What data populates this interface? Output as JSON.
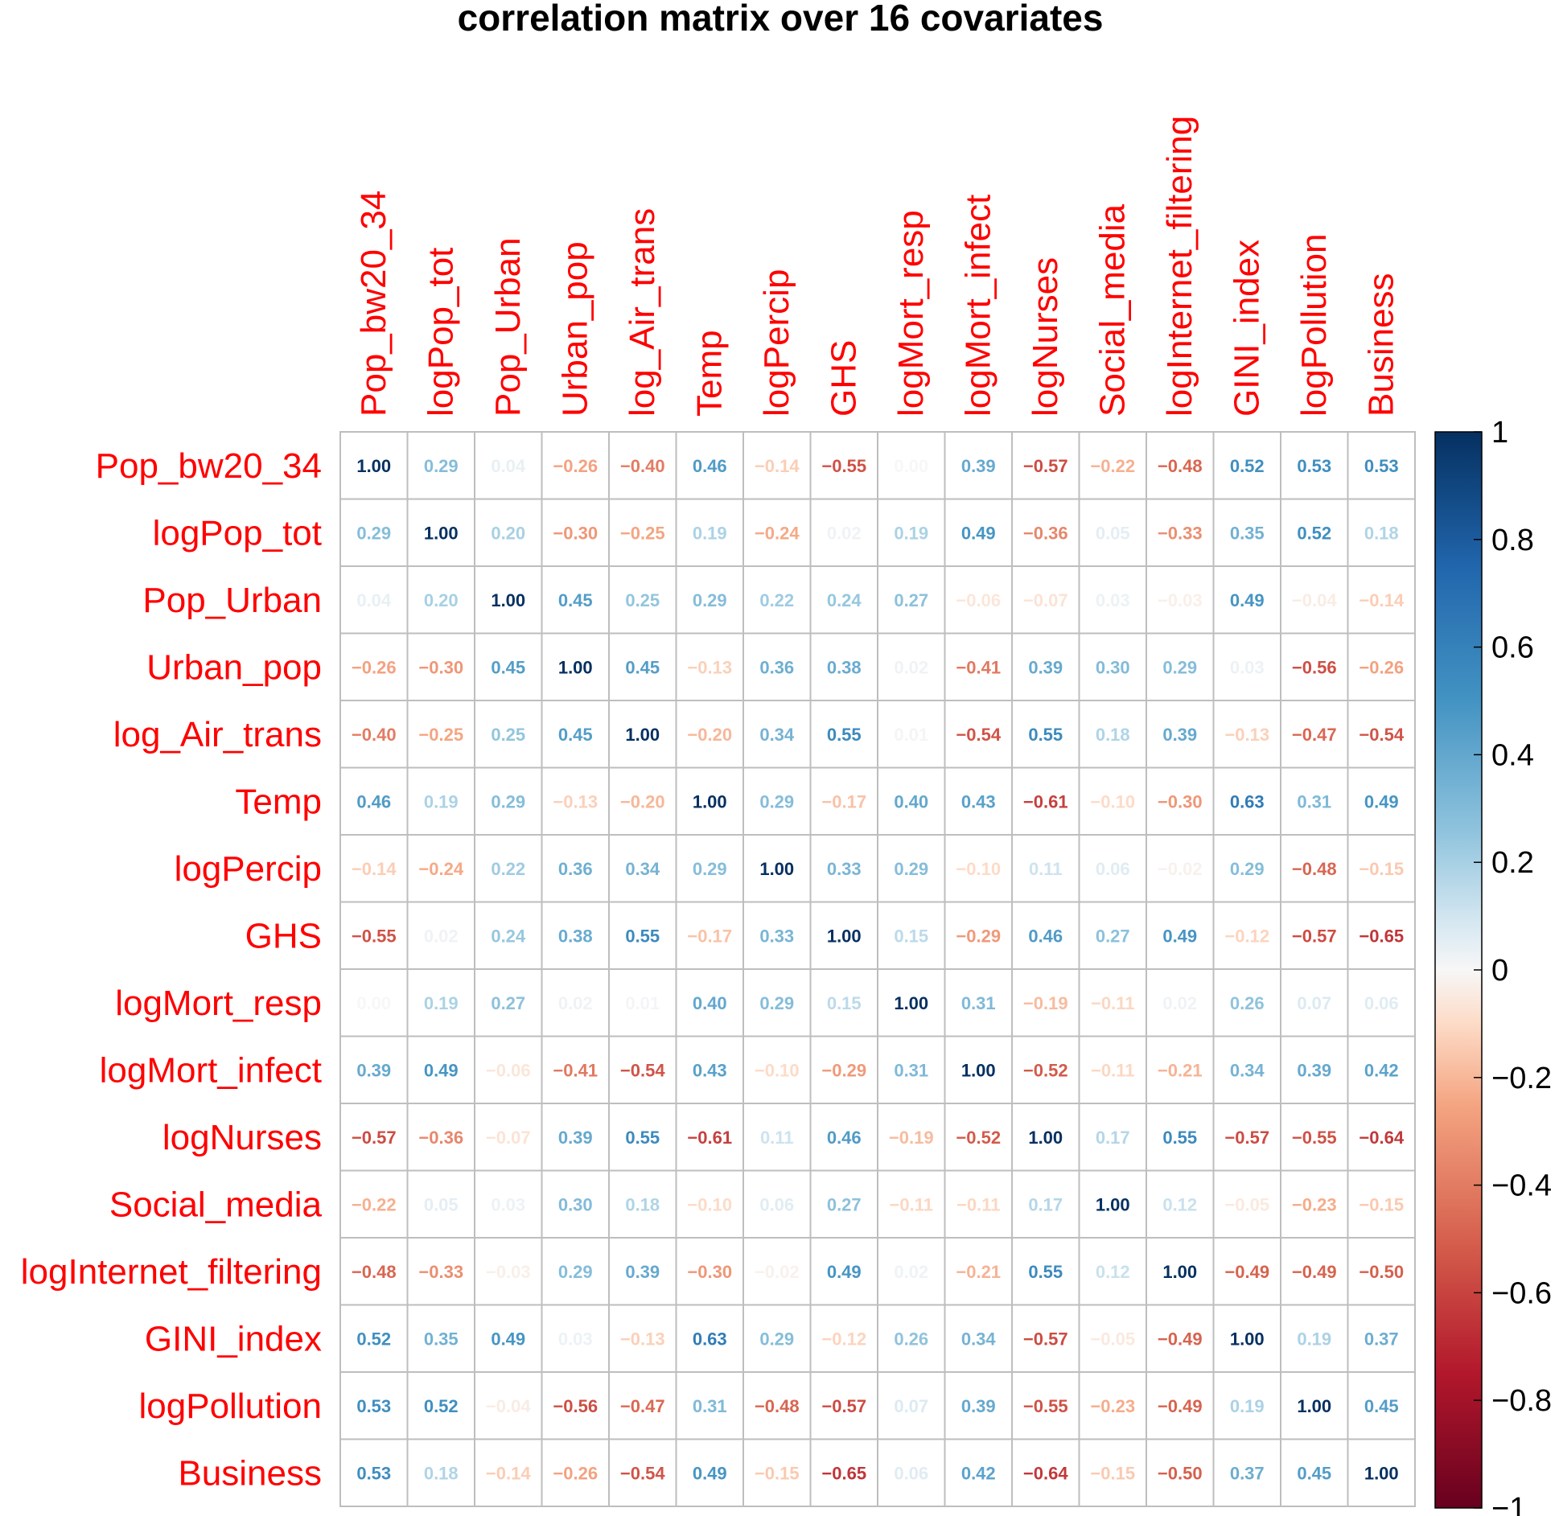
{
  "chart_data": {
    "type": "heatmap",
    "title": "correlation matrix over 16 covariates",
    "variables": [
      "Pop_bw20_34",
      "logPop_tot",
      "Pop_Urban",
      "Urban_pop",
      "log_Air_trans",
      "Temp",
      "logPercip",
      "GHS",
      "logMort_resp",
      "logMort_infect",
      "logNurses",
      "Social_media",
      "logInternet_filtering",
      "GINI_index",
      "logPollution",
      "Business"
    ],
    "matrix": [
      [
        1.0,
        0.29,
        0.04,
        -0.26,
        -0.4,
        0.46,
        -0.14,
        -0.55,
        0.0,
        0.39,
        -0.57,
        -0.22,
        -0.48,
        0.52,
        0.53,
        0.53
      ],
      [
        0.29,
        1.0,
        0.2,
        -0.3,
        -0.25,
        0.19,
        -0.24,
        0.02,
        0.19,
        0.49,
        -0.36,
        0.05,
        -0.33,
        0.35,
        0.52,
        0.18
      ],
      [
        0.04,
        0.2,
        1.0,
        0.45,
        0.25,
        0.29,
        0.22,
        0.24,
        0.27,
        -0.06,
        -0.07,
        0.03,
        -0.03,
        0.49,
        -0.04,
        -0.14
      ],
      [
        -0.26,
        -0.3,
        0.45,
        1.0,
        0.45,
        -0.13,
        0.36,
        0.38,
        0.02,
        -0.41,
        0.39,
        0.3,
        0.29,
        0.03,
        -0.56,
        -0.26
      ],
      [
        -0.4,
        -0.25,
        0.25,
        0.45,
        1.0,
        -0.2,
        0.34,
        0.55,
        0.01,
        -0.54,
        0.55,
        0.18,
        0.39,
        -0.13,
        -0.47,
        -0.54
      ],
      [
        0.46,
        0.19,
        0.29,
        -0.13,
        -0.2,
        1.0,
        0.29,
        -0.17,
        0.4,
        0.43,
        -0.61,
        -0.1,
        -0.3,
        0.63,
        0.31,
        0.49
      ],
      [
        -0.14,
        -0.24,
        0.22,
        0.36,
        0.34,
        0.29,
        1.0,
        0.33,
        0.29,
        -0.1,
        0.11,
        0.06,
        -0.02,
        0.29,
        -0.48,
        -0.15
      ],
      [
        -0.55,
        0.02,
        0.24,
        0.38,
        0.55,
        -0.17,
        0.33,
        1.0,
        0.15,
        -0.29,
        0.46,
        0.27,
        0.49,
        -0.12,
        -0.57,
        -0.65
      ],
      [
        0.0,
        0.19,
        0.27,
        0.02,
        0.01,
        0.4,
        0.29,
        0.15,
        1.0,
        0.31,
        -0.19,
        -0.11,
        0.02,
        0.26,
        0.07,
        0.06
      ],
      [
        0.39,
        0.49,
        -0.06,
        -0.41,
        -0.54,
        0.43,
        -0.1,
        -0.29,
        0.31,
        1.0,
        -0.52,
        -0.11,
        -0.21,
        0.34,
        0.39,
        0.42
      ],
      [
        -0.57,
        -0.36,
        -0.07,
        0.39,
        0.55,
        -0.61,
        0.11,
        0.46,
        -0.19,
        -0.52,
        1.0,
        0.17,
        0.55,
        -0.57,
        -0.55,
        -0.64
      ],
      [
        -0.22,
        0.05,
        0.03,
        0.3,
        0.18,
        -0.1,
        0.06,
        0.27,
        -0.11,
        -0.11,
        0.17,
        1.0,
        0.12,
        -0.05,
        -0.23,
        -0.15
      ],
      [
        -0.48,
        -0.33,
        -0.03,
        0.29,
        0.39,
        -0.3,
        -0.02,
        0.49,
        0.02,
        -0.21,
        0.55,
        0.12,
        1.0,
        -0.49,
        -0.49,
        -0.5
      ],
      [
        0.52,
        0.35,
        0.49,
        0.03,
        -0.13,
        0.63,
        0.29,
        -0.12,
        0.26,
        0.34,
        -0.57,
        -0.05,
        -0.49,
        1.0,
        0.19,
        0.37
      ],
      [
        0.53,
        0.52,
        -0.04,
        -0.56,
        -0.47,
        0.31,
        -0.48,
        -0.57,
        0.07,
        0.39,
        -0.55,
        -0.23,
        -0.49,
        0.19,
        1.0,
        0.45
      ],
      [
        0.53,
        0.18,
        -0.14,
        -0.26,
        -0.54,
        0.49,
        -0.15,
        -0.65,
        0.06,
        0.42,
        -0.64,
        -0.15,
        -0.5,
        0.37,
        0.45,
        1.0
      ]
    ],
    "display": "number",
    "value_range": [
      -1,
      1
    ],
    "colorbar": {
      "ticks": [
        1,
        0.8,
        0.6,
        0.4,
        0.2,
        0,
        -0.2,
        -0.4,
        -0.6,
        -0.8,
        -1
      ],
      "tick_labels": [
        "1",
        "0.8",
        "0.6",
        "0.4",
        "0.2",
        "0",
        "−0.2",
        "−0.4",
        "−0.6",
        "−0.8",
        "−1"
      ],
      "placement": "right"
    },
    "colors": {
      "negative_end": "#67001f",
      "neutral": "#f7f7f7",
      "positive_end": "#053061",
      "label_text": "#ff0000",
      "grid": "#bebebe"
    }
  }
}
